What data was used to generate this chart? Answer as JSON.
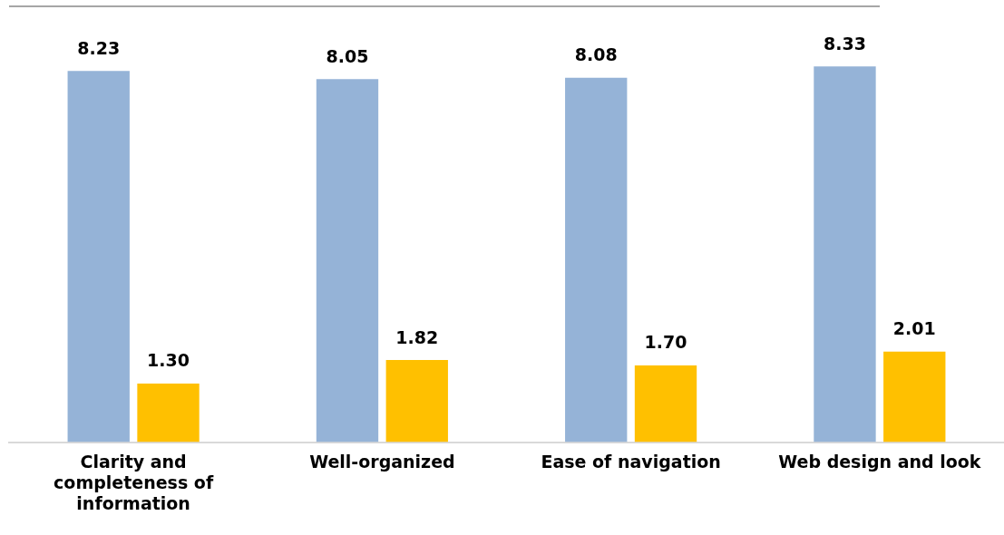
{
  "chart_data": {
    "type": "bar",
    "categories": [
      "Clarity and completeness of information",
      "Well-organized",
      "Ease of navigation",
      "Web design and look"
    ],
    "series": [
      {
        "color": "#95b3d7",
        "values": [
          8.23,
          8.05,
          8.08,
          8.33
        ],
        "value_labels": [
          "8.23",
          "8.05",
          "8.08",
          "8.33"
        ]
      },
      {
        "color": "#ffc000",
        "values": [
          1.3,
          1.82,
          1.7,
          2.01
        ],
        "value_labels": [
          "1.30",
          "1.82",
          "1.70",
          "2.01"
        ]
      }
    ],
    "grid": false,
    "legend": false
  }
}
